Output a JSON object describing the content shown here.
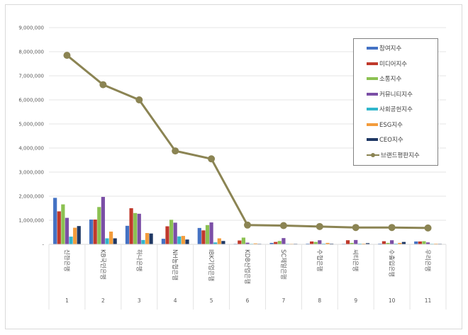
{
  "chart_data": {
    "type": "bar",
    "title": "",
    "xlabel": "",
    "ylabel": "",
    "ylim": [
      0,
      9000000
    ],
    "grid": true,
    "legend_position": "right-inset",
    "y_ticks": [
      "-",
      "1,000,000",
      "2,000,000",
      "3,000,000",
      "4,000,000",
      "5,000,000",
      "6,000,000",
      "7,000,000",
      "8,000,000",
      "9,000,000"
    ],
    "x_ranks": [
      "1",
      "2",
      "3",
      "4",
      "5",
      "6",
      "7",
      "8",
      "9",
      "10",
      "11"
    ],
    "categories": [
      "신한은행",
      "KB국민은행",
      "하나은행",
      "NH농협은행",
      "IBK기업은행",
      "KDB산업은행",
      "SC제일은행",
      "수협은행",
      "씨티은행",
      "수출입은행",
      "우리은행"
    ],
    "series": [
      {
        "name": "참여지수",
        "type": "bar",
        "color": "#4472c4",
        "values": [
          1930000,
          1030000,
          770000,
          230000,
          680000,
          20000,
          60000,
          30000,
          10000,
          30000,
          120000
        ]
      },
      {
        "name": "미디어지수",
        "type": "bar",
        "color": "#c0392b",
        "values": [
          1370000,
          1030000,
          1500000,
          750000,
          580000,
          160000,
          100000,
          120000,
          170000,
          130000,
          120000
        ]
      },
      {
        "name": "소통지수",
        "type": "bar",
        "color": "#8cc152",
        "values": [
          1660000,
          1550000,
          1300000,
          1020000,
          800000,
          280000,
          140000,
          100000,
          60000,
          60000,
          130000
        ]
      },
      {
        "name": "커뮤니티지수",
        "type": "bar",
        "color": "#7b4fa6",
        "values": [
          1100000,
          1970000,
          1270000,
          900000,
          910000,
          70000,
          260000,
          170000,
          180000,
          170000,
          80000
        ]
      },
      {
        "name": "사회공헌지수",
        "type": "bar",
        "color": "#31b6cc",
        "values": [
          320000,
          250000,
          180000,
          330000,
          80000,
          20000,
          20000,
          30000,
          30000,
          30000,
          10000
        ]
      },
      {
        "name": "ESG지수",
        "type": "bar",
        "color": "#f39c3c",
        "values": [
          690000,
          530000,
          470000,
          350000,
          250000,
          40000,
          20000,
          60000,
          30000,
          60000,
          30000
        ]
      },
      {
        "name": "CEO지수",
        "type": "bar",
        "color": "#1f3864",
        "values": [
          760000,
          250000,
          450000,
          200000,
          140000,
          20000,
          20000,
          30000,
          50000,
          100000,
          0
        ]
      },
      {
        "name": "브랜드평판지수",
        "type": "line",
        "color": "#8b8453",
        "values": [
          7850000,
          6630000,
          6000000,
          3880000,
          3550000,
          800000,
          780000,
          740000,
          700000,
          700000,
          680000
        ]
      }
    ]
  }
}
